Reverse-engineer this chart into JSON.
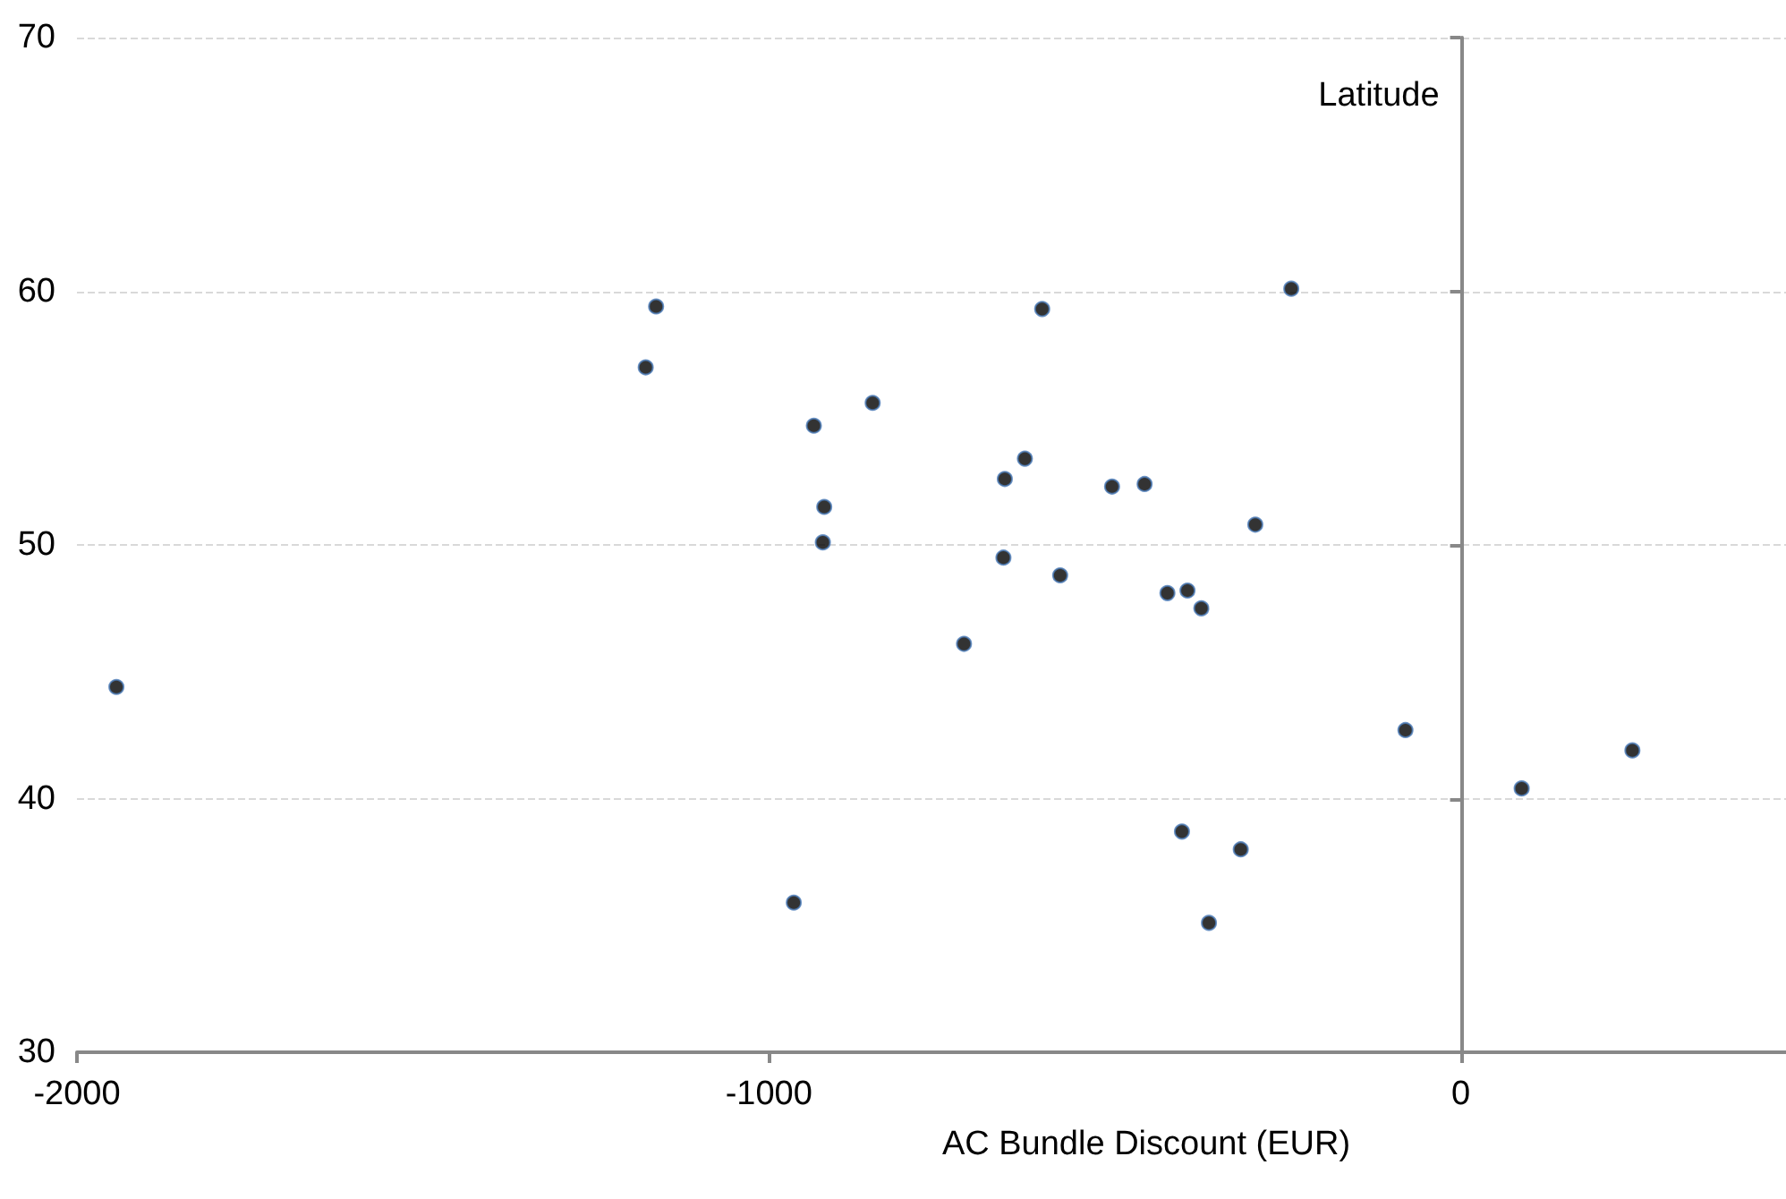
{
  "chart_data": {
    "type": "scatter",
    "xlabel": "AC Bundle Discount (EUR)",
    "ylabel": "Latitude",
    "xlim": [
      -2000,
      470
    ],
    "xticks": [
      -2000,
      -1000,
      0
    ],
    "ylim": [
      30,
      70
    ],
    "yticks": [
      30,
      40,
      50,
      60,
      70
    ],
    "grid": "y",
    "marker": "circle",
    "series": [
      {
        "color": "#000000",
        "x": [
          -1943,
          -1163,
          -1178,
          -850,
          -935,
          -920,
          -922,
          -605,
          -245,
          -630,
          -659,
          -504,
          -457,
          -297,
          -661,
          -579,
          -424,
          -395,
          -375,
          -718,
          -80,
          248,
          88,
          -964,
          -403,
          -318,
          -364
        ],
        "values": [
          44.4,
          59.4,
          57.0,
          55.6,
          54.7,
          51.5,
          50.1,
          59.3,
          60.1,
          53.4,
          52.6,
          52.3,
          52.4,
          50.8,
          49.5,
          48.8,
          48.1,
          48.2,
          47.5,
          46.1,
          42.7,
          41.9,
          40.4,
          35.9,
          38.7,
          38.0,
          35.1
        ]
      }
    ]
  }
}
